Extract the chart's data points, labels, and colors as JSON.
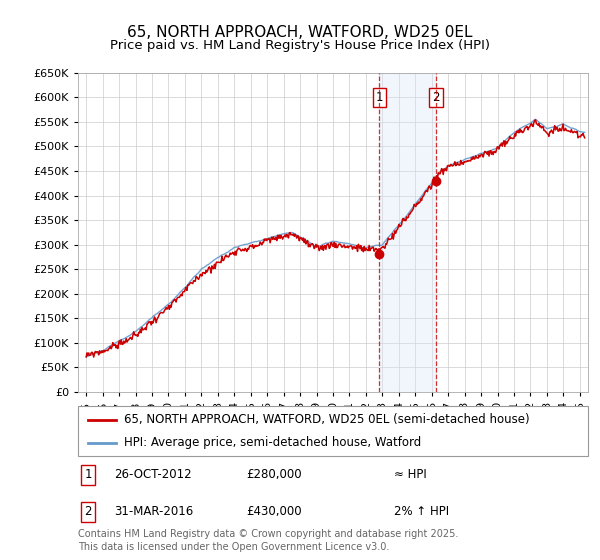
{
  "title": "65, NORTH APPROACH, WATFORD, WD25 0EL",
  "subtitle": "Price paid vs. HM Land Registry's House Price Index (HPI)",
  "ylim": [
    0,
    650000
  ],
  "yticks": [
    0,
    50000,
    100000,
    150000,
    200000,
    250000,
    300000,
    350000,
    400000,
    450000,
    500000,
    550000,
    600000,
    650000
  ],
  "xlim_start": 1994.5,
  "xlim_end": 2025.5,
  "sale1_date": 2012.82,
  "sale1_price": 280000,
  "sale1_label": "1",
  "sale2_date": 2016.25,
  "sale2_price": 430000,
  "sale2_label": "2",
  "hpi_line_color": "#6699CC",
  "price_line_color": "#CC0000",
  "shade_color": "#D8E8F8",
  "vline_color": "#CC0000",
  "legend_text1": "65, NORTH APPROACH, WATFORD, WD25 0EL (semi-detached house)",
  "legend_text2": "HPI: Average price, semi-detached house, Watford",
  "ann1_num": "1",
  "ann1_date": "26-OCT-2012",
  "ann1_price": "£280,000",
  "ann1_note": "≈ HPI",
  "ann2_num": "2",
  "ann2_date": "31-MAR-2016",
  "ann2_price": "£430,000",
  "ann2_note": "2% ↑ HPI",
  "footer": "Contains HM Land Registry data © Crown copyright and database right 2025.\nThis data is licensed under the Open Government Licence v3.0.",
  "background_color": "#FFFFFF",
  "grid_color": "#CCCCCC",
  "title_fontsize": 11,
  "subtitle_fontsize": 9.5,
  "tick_fontsize": 8,
  "legend_fontsize": 8.5,
  "ann_fontsize": 8.5,
  "footer_fontsize": 7
}
